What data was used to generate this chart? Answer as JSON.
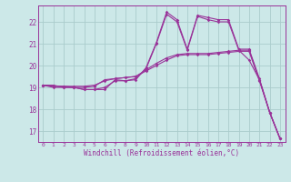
{
  "bg_color": "#cce8e8",
  "line_color": "#993399",
  "grid_color": "#aacccc",
  "xlabel": "Windchill (Refroidissement éolien,°C)",
  "ylabel_ticks": [
    17,
    18,
    19,
    20,
    21,
    22
  ],
  "xticks": [
    0,
    1,
    2,
    3,
    4,
    5,
    6,
    7,
    8,
    9,
    10,
    11,
    12,
    13,
    14,
    15,
    16,
    17,
    18,
    19,
    20,
    21,
    22,
    23
  ],
  "xlim": [
    -0.5,
    23.5
  ],
  "ylim": [
    16.5,
    22.75
  ],
  "series": [
    [
      19.1,
      19.1,
      19.0,
      19.0,
      18.9,
      18.9,
      18.9,
      19.35,
      19.3,
      19.35,
      19.9,
      21.05,
      22.45,
      22.1,
      20.75,
      22.3,
      22.2,
      22.1,
      22.1,
      20.75,
      20.75,
      19.4,
      17.85,
      16.65
    ],
    [
      19.1,
      19.0,
      19.0,
      19.0,
      18.9,
      18.9,
      19.0,
      19.3,
      19.3,
      19.4,
      19.85,
      21.0,
      22.35,
      22.0,
      20.7,
      22.25,
      22.1,
      22.0,
      22.0,
      20.7,
      20.25,
      19.35,
      17.85,
      16.65
    ],
    [
      19.1,
      19.05,
      19.05,
      19.0,
      19.0,
      19.05,
      19.35,
      19.4,
      19.45,
      19.5,
      19.8,
      20.1,
      20.35,
      20.5,
      20.55,
      20.55,
      20.55,
      20.6,
      20.65,
      20.7,
      20.7,
      19.35,
      17.85,
      16.65
    ],
    [
      19.1,
      19.05,
      19.05,
      19.05,
      19.05,
      19.1,
      19.3,
      19.4,
      19.45,
      19.5,
      19.75,
      20.0,
      20.25,
      20.45,
      20.5,
      20.5,
      20.5,
      20.55,
      20.6,
      20.65,
      20.65,
      19.3,
      17.85,
      16.65
    ]
  ]
}
